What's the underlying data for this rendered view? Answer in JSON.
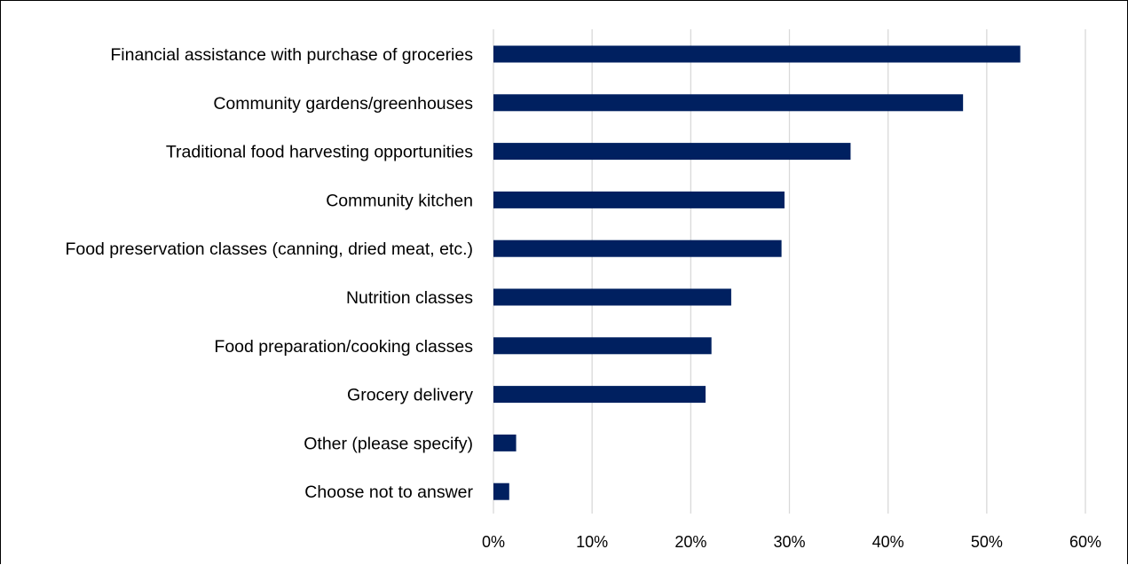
{
  "chart_data": {
    "type": "bar",
    "orientation": "horizontal",
    "title": "",
    "xlabel": "",
    "ylabel": "",
    "categories": [
      "Financial assistance with purchase of groceries",
      "Community gardens/greenhouses",
      "Traditional food harvesting opportunities",
      "Community kitchen",
      "Food preservation classes (canning, dried meat, etc.)",
      "Nutrition classes",
      "Food preparation/cooking classes",
      "Grocery delivery",
      "Other (please specify)",
      "Choose not to answer"
    ],
    "values": [
      53.4,
      47.6,
      36.2,
      29.5,
      29.2,
      24.1,
      22.1,
      21.5,
      2.3,
      1.6
    ],
    "xlim": [
      0,
      60
    ],
    "ticks": [
      0,
      10,
      20,
      30,
      40,
      50,
      60
    ],
    "tick_labels": [
      "0%",
      "10%",
      "20%",
      "30%",
      "40%",
      "50%",
      "60%"
    ],
    "grid": "vertical",
    "legend": "none",
    "bar_color": "#002060",
    "grid_color": "#d9d9d9"
  }
}
